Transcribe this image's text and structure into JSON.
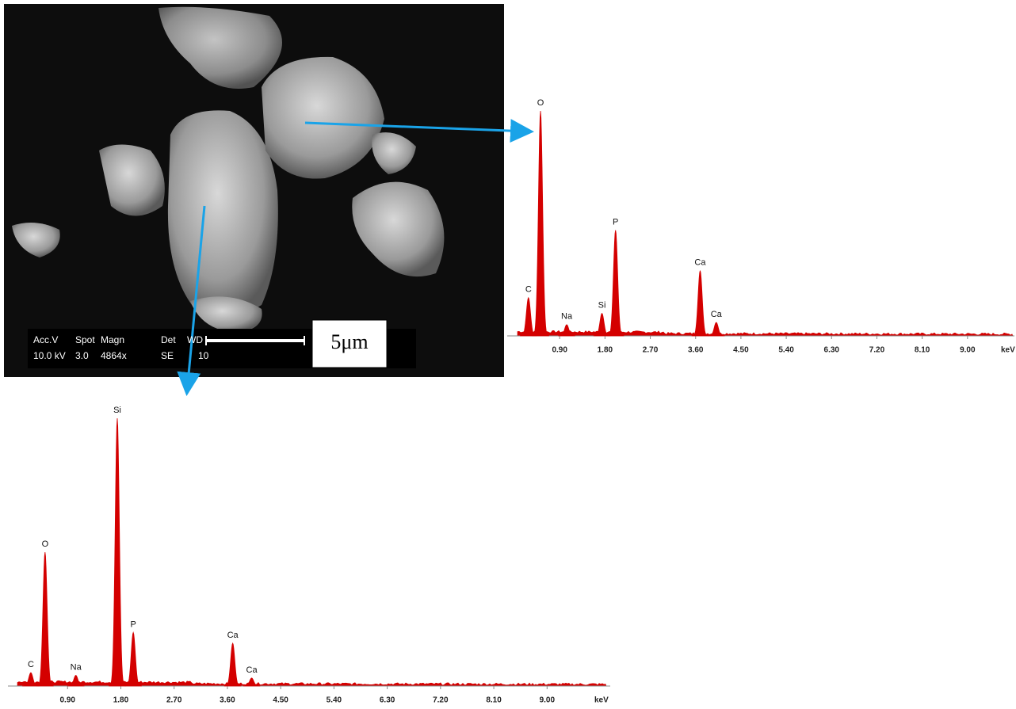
{
  "sem_image": {
    "info_headers": [
      "Acc.V",
      "Spot",
      "Magn",
      "Det",
      "WD"
    ],
    "info_values": [
      "10.0 kV",
      "3.0",
      "4864x",
      "SE",
      "10"
    ],
    "scale_bar": "5μm"
  },
  "chart_data": [
    {
      "type": "spectrum",
      "x_label": "keV",
      "color": "#d40000",
      "categories": [
        "C",
        "O",
        "Na",
        "Si",
        "P",
        "Ca",
        "Ca"
      ],
      "x": [
        0.28,
        0.52,
        1.04,
        1.74,
        2.01,
        3.69,
        4.01
      ],
      "values": [
        17,
        100,
        5,
        10,
        47,
        29,
        6
      ],
      "xlim": [
        0,
        9.9
      ],
      "ylim": [
        0,
        100
      ],
      "xticks": [
        {
          "value": 0.9,
          "label": "0.90"
        },
        {
          "value": 1.8,
          "label": "1.80"
        },
        {
          "value": 2.7,
          "label": "2.70"
        },
        {
          "value": 3.6,
          "label": "3.60"
        },
        {
          "value": 4.5,
          "label": "4.50"
        },
        {
          "value": 5.4,
          "label": "5.40"
        },
        {
          "value": 6.3,
          "label": "6.30"
        },
        {
          "value": 7.2,
          "label": "7.20"
        },
        {
          "value": 8.1,
          "label": "8.10"
        },
        {
          "value": 9.0,
          "label": "9.00"
        }
      ]
    },
    {
      "type": "spectrum",
      "x_label": "keV",
      "color": "#d40000",
      "categories": [
        "C",
        "O",
        "Na",
        "Si",
        "P",
        "Ca",
        "Ca"
      ],
      "x": [
        0.28,
        0.52,
        1.04,
        1.74,
        2.01,
        3.69,
        4.01
      ],
      "values": [
        5,
        50,
        4,
        100,
        20,
        16,
        3
      ],
      "xlim": [
        0,
        10
      ],
      "ylim": [
        0,
        100
      ],
      "xticks": [
        {
          "value": 0.9,
          "label": "0.90"
        },
        {
          "value": 1.8,
          "label": "1.80"
        },
        {
          "value": 2.7,
          "label": "2.70"
        },
        {
          "value": 3.6,
          "label": "3.60"
        },
        {
          "value": 4.5,
          "label": "4.50"
        },
        {
          "value": 5.4,
          "label": "5.40"
        },
        {
          "value": 6.3,
          "label": "6.30"
        },
        {
          "value": 7.2,
          "label": "7.20"
        },
        {
          "value": 8.1,
          "label": "8.10"
        },
        {
          "value": 9.0,
          "label": "9.00"
        }
      ]
    }
  ]
}
